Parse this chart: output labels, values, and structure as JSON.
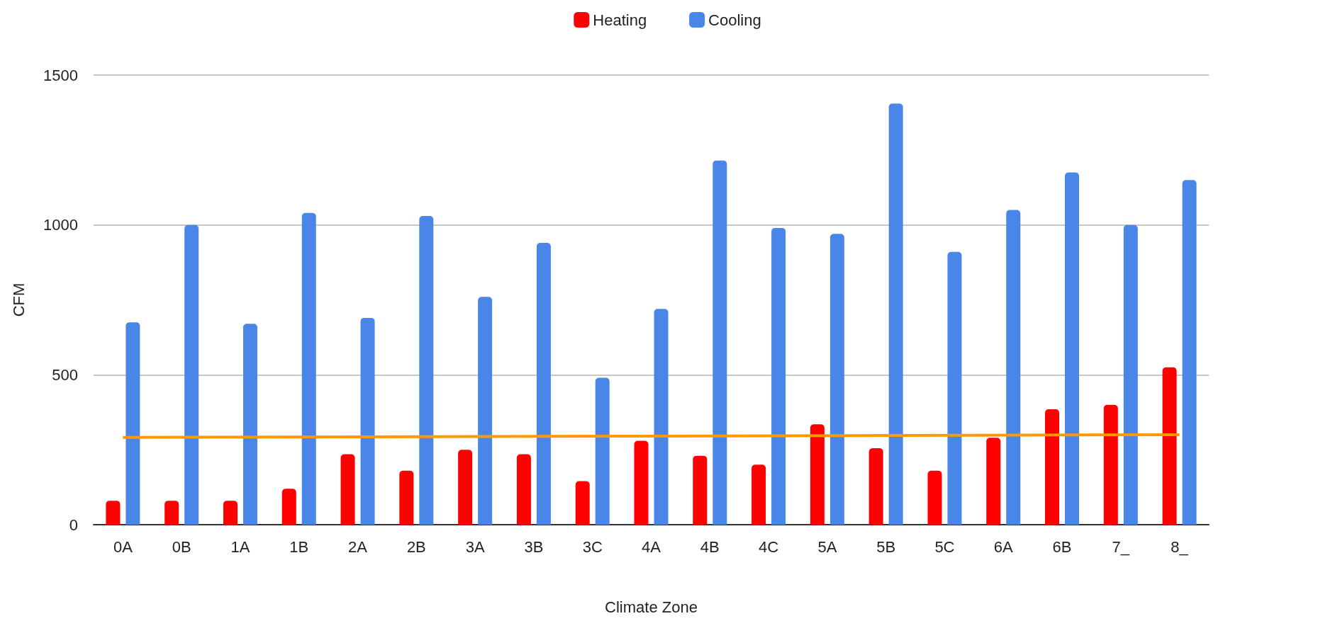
{
  "chart_data": {
    "type": "bar",
    "xlabel": "Climate Zone",
    "ylabel": "CFM",
    "categories": [
      "0A",
      "0B",
      "1A",
      "1B",
      "2A",
      "2B",
      "3A",
      "3B",
      "3C",
      "4A",
      "4B",
      "4C",
      "5A",
      "5B",
      "5C",
      "6A",
      "6B",
      "7_",
      "8_"
    ],
    "series": [
      {
        "name": "Heating",
        "color": "#ff0000",
        "values": [
          80,
          80,
          80,
          120,
          235,
          180,
          250,
          235,
          145,
          280,
          230,
          200,
          335,
          255,
          180,
          290,
          385,
          400,
          525
        ]
      },
      {
        "name": "Cooling",
        "color": "#4a86e8",
        "values": [
          675,
          1000,
          670,
          1040,
          690,
          1030,
          760,
          940,
          490,
          720,
          1215,
          990,
          970,
          1405,
          910,
          1050,
          1175,
          1000,
          1150
        ]
      },
      {
        "type": "line",
        "color": "#ff9900",
        "x": [
          "0A",
          "8_"
        ],
        "values": [
          291,
          300
        ],
        "marker": "none"
      }
    ],
    "ylim": [
      0,
      1500
    ],
    "yticks": [
      0,
      500,
      1000,
      1500
    ],
    "grid": "y",
    "legend": "top"
  }
}
